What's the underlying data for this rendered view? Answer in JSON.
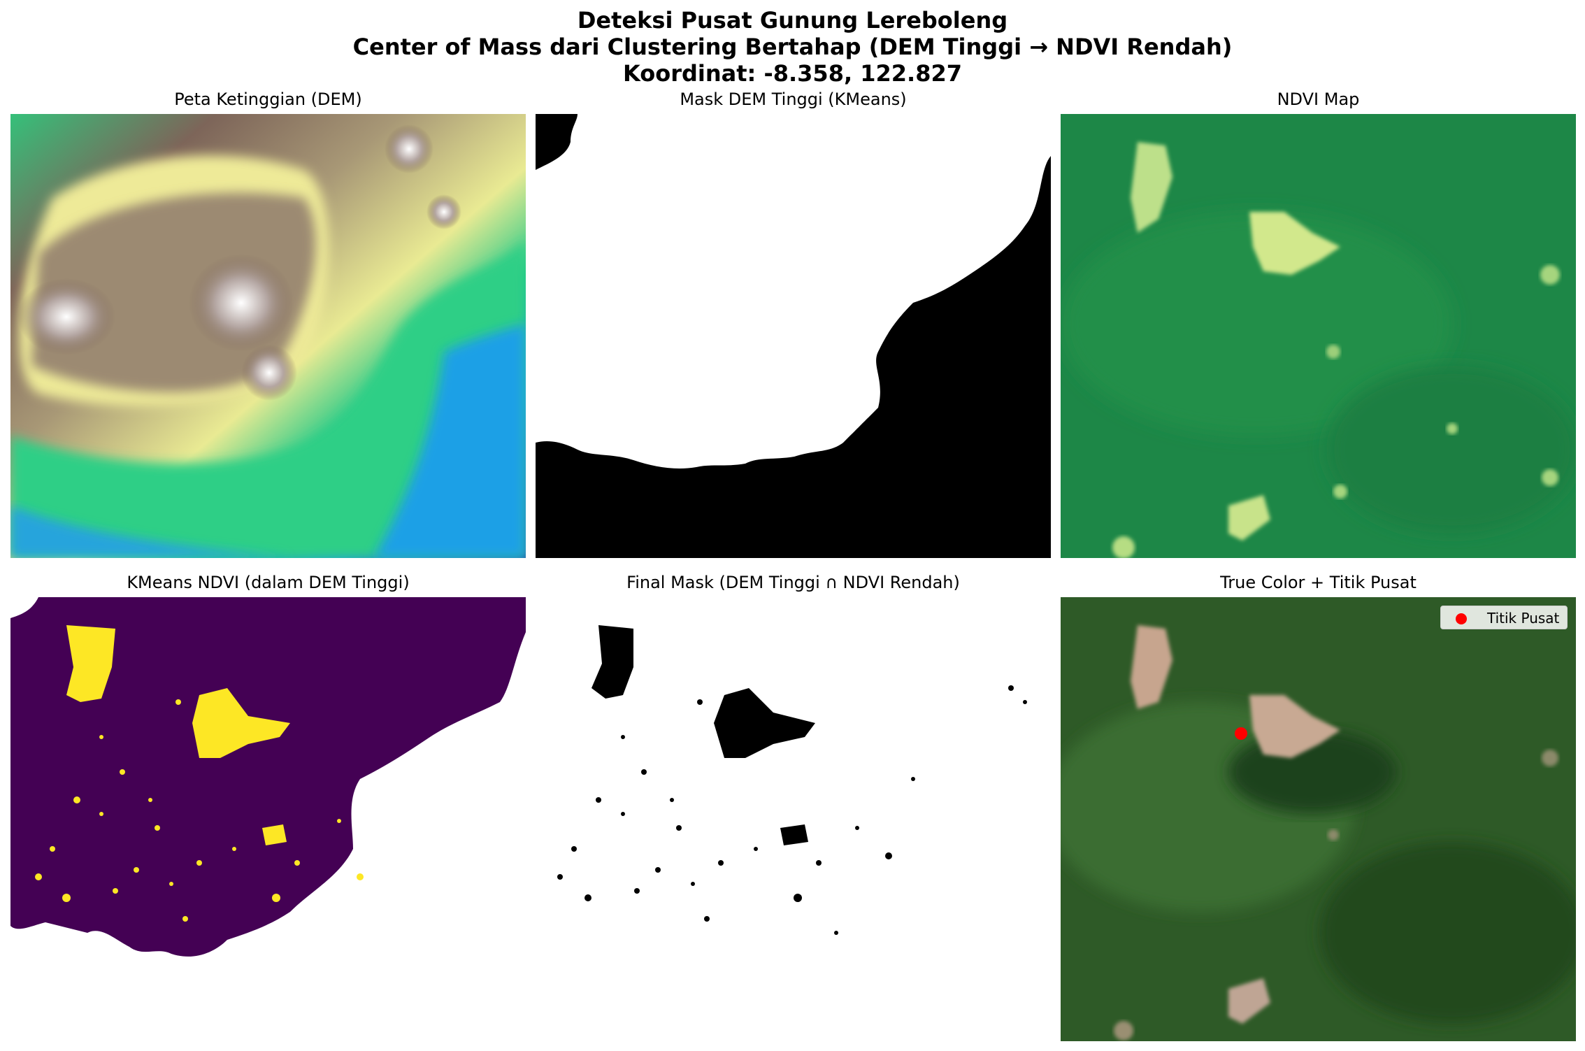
{
  "figure": {
    "title_line1": "Deteksi Pusat Gunung Lereboleng",
    "title_line2": "Center of Mass dari Clustering Bertahap (DEM Tinggi → NDVI Rendah)",
    "title_line3": "Koordinat: -8.358, 122.827"
  },
  "panels": {
    "dem": {
      "title": "Peta Ketinggian (DEM)",
      "colormap": "terrain"
    },
    "dem_mask": {
      "title": "Mask DEM Tinggi (KMeans)",
      "colormap": "gray"
    },
    "ndvi": {
      "title": "NDVI Map",
      "colormap": "YlGn"
    },
    "kmeans_ndvi": {
      "title": "KMeans NDVI (dalam DEM Tinggi)",
      "colormap": "viridis"
    },
    "final_mask": {
      "title": "Final Mask (DEM Tinggi ∩ NDVI Rendah)",
      "colormap": "gray"
    },
    "true_color": {
      "title": "True Color + Titik Pusat",
      "legend_label": "Titik Pusat",
      "marker_color": "#ff0000"
    }
  },
  "colors": {
    "dem_low": "#3344bb",
    "dem_mid": "#33cc77",
    "dem_high": "#f2ee9a",
    "dem_peak": "#8a7060",
    "viridis_purple": "#440154",
    "viridis_yellow": "#fde725",
    "ndvi_green": "#1f8a48",
    "ndvi_light": "#d9ec8a",
    "forest": "#2d5a28"
  }
}
